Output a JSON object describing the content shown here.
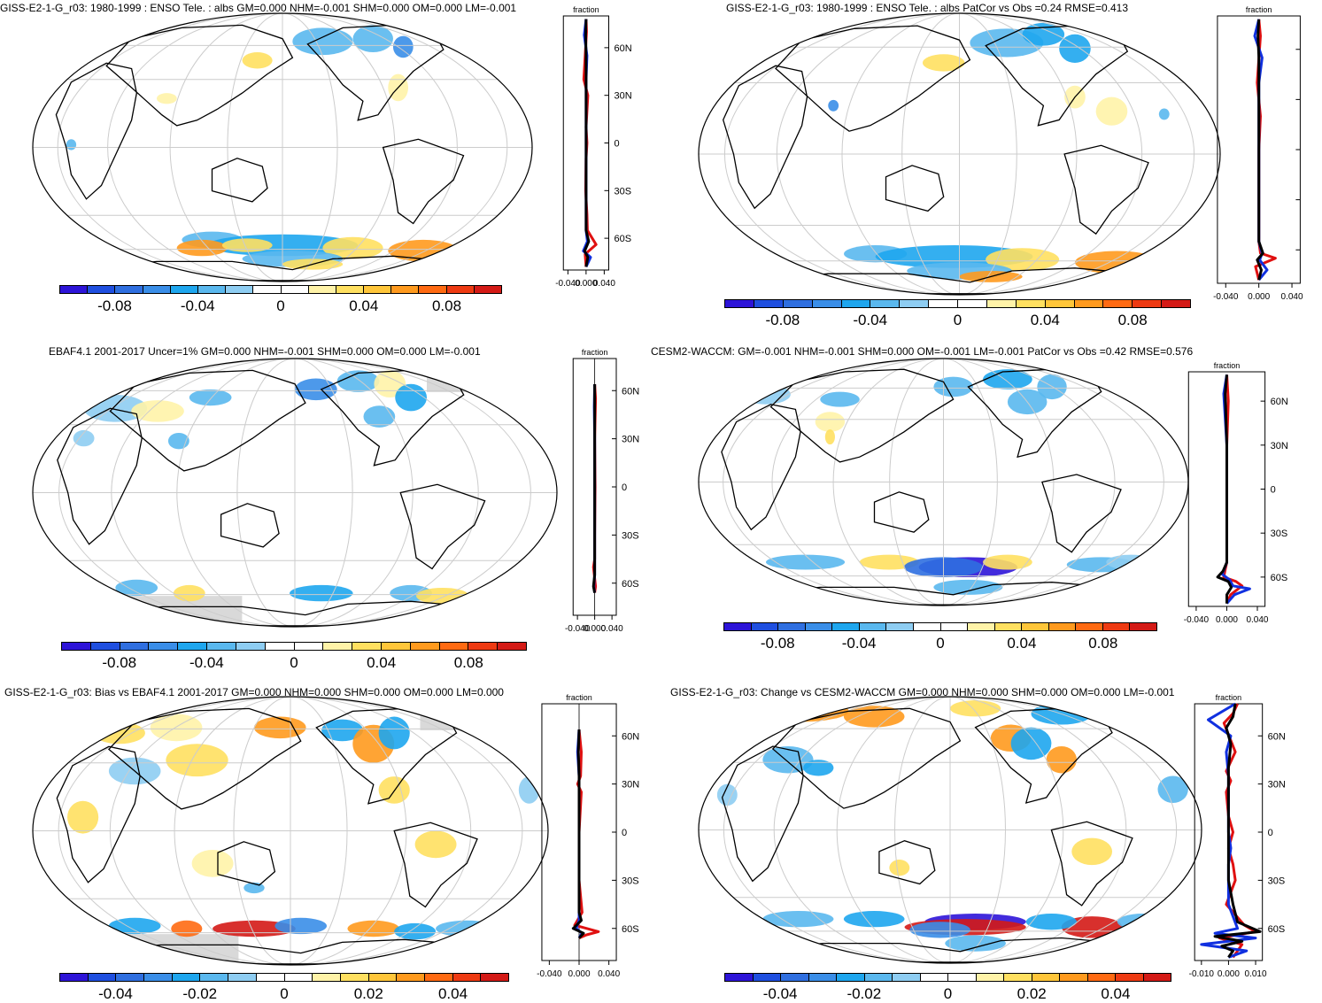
{
  "colorbar_colors": [
    "#2d14d8",
    "#1f4fe0",
    "#2f6fe0",
    "#3a8ee8",
    "#1ea6ee",
    "#5ab8ee",
    "#8ecdf2",
    "#ffffff",
    "#ffffff",
    "#fff3a8",
    "#ffe060",
    "#ffc63a",
    "#ff9a1e",
    "#ff6a12",
    "#ee3a12",
    "#d41a16"
  ],
  "line_colors": {
    "red": "#e01010",
    "blue": "#1030e0",
    "black": "#000000"
  },
  "panels": [
    {
      "title": "GISS-E2-1-G_r03: 1980-1999 : ENSO Tele. : albs GM=0.000 NHM=-0.001 SHM=0.000 OM=0.000 LM=-0.001",
      "colorbar_ticks": [
        "-0.08",
        "-0.04",
        "0",
        "0.04",
        "0.08"
      ],
      "zonal": {
        "label": "fraction",
        "xticks": [
          "-0.040",
          "0.000",
          "0.040"
        ],
        "yticks": [
          "60N",
          "30N",
          "0",
          "30S",
          "60S"
        ]
      }
    },
    {
      "title": "GISS-E2-1-G_r03: 1980-1999 : ENSO Tele. : albs PatCor vs Obs =0.24 RMSE=0.413",
      "colorbar_ticks": [
        "-0.08",
        "-0.04",
        "0",
        "0.04",
        "0.08"
      ],
      "zonal": {
        "label": "fraction",
        "xticks": [
          "-0.040",
          "0.000",
          "0.040"
        ],
        "yticks": []
      }
    },
    {
      "title": "EBAF4.1 2001-2017 Uncer=1% GM=0.000 NHM=-0.001 SHM=0.000 OM=0.000 LM=-0.001",
      "colorbar_ticks": [
        "-0.08",
        "-0.04",
        "0",
        "0.04",
        "0.08"
      ],
      "zonal": {
        "label": "fraction",
        "xticks": [
          "-0.040",
          "0.000",
          "0.040"
        ],
        "yticks": [
          "60N",
          "30N",
          "0",
          "30S",
          "60S"
        ]
      }
    },
    {
      "title": "CESM2-WACCM: GM=-0.001 NHM=-0.001 SHM=0.000 OM=-0.001 LM=-0.001 PatCor vs Obs =0.42 RMSE=0.576",
      "colorbar_ticks": [
        "-0.08",
        "-0.04",
        "0",
        "0.04",
        "0.08"
      ],
      "zonal": {
        "label": "fraction",
        "xticks": [
          "-0.040",
          "0.000",
          "0.040"
        ],
        "yticks": [
          "60N",
          "30N",
          "0",
          "30S",
          "60S"
        ]
      }
    },
    {
      "title": "GISS-E2-1-G_r03: Bias vs EBAF4.1 2001-2017 GM=0.000 NHM=0.000 SHM=0.000 OM=0.000 LM=0.000",
      "colorbar_ticks": [
        "-0.04",
        "-0.02",
        "0",
        "0.02",
        "0.04"
      ],
      "zonal": {
        "label": "fraction",
        "xticks": [
          "-0.040",
          "0.000",
          "0.040"
        ],
        "yticks": [
          "60N",
          "30N",
          "0",
          "30S",
          "60S"
        ]
      }
    },
    {
      "title": "GISS-E2-1-G_r03: Change vs CESM2-WACCM GM=0.000 NHM=0.000 SHM=0.000 OM=0.000 LM=-0.001",
      "colorbar_ticks": [
        "-0.04",
        "-0.02",
        "0",
        "0.02",
        "0.04"
      ],
      "zonal": {
        "label": "fraction",
        "xticks": [
          "-0.010",
          "0.000",
          "0.010"
        ],
        "yticks": [
          "60N",
          "30N",
          "0",
          "30S",
          "60S"
        ]
      }
    }
  ],
  "chart_data": [
    {
      "type": "heatmap",
      "title": "GISS-E2-1-G_r03: 1980-1999 : ENSO Tele. : albs GM=0.000 NHM=-0.001 SHM=0.000 OM=0.000 LM=-0.001",
      "colorbar": {
        "min": -0.1,
        "max": 0.1,
        "ticks": [
          -0.08,
          -0.04,
          0,
          0.04,
          0.08
        ]
      },
      "zonal_mean": {
        "xlabel": "fraction",
        "xlim": [
          -0.05,
          0.05
        ],
        "ylim": [
          -80,
          80
        ],
        "series": [
          {
            "name": "red",
            "x": [
              0,
              0.001,
              -0.005,
              0.004,
              0,
              0.002,
              0,
              -0.001,
              0.002,
              0.003,
              0.022,
              -0.002,
              0
            ],
            "y": [
              78,
              70,
              40,
              30,
              10,
              0,
              -10,
              -30,
              -45,
              -55,
              -64,
              -70,
              -78
            ]
          },
          {
            "name": "blue",
            "x": [
              0,
              -0.004,
              0.002,
              0,
              0,
              0,
              0,
              0,
              0,
              0.003,
              -0.006,
              0.01,
              0
            ],
            "y": [
              78,
              68,
              55,
              40,
              20,
              0,
              -20,
              -40,
              -55,
              -62,
              -68,
              -72,
              -78
            ]
          },
          {
            "name": "black",
            "x": [
              0,
              -0.001,
              0,
              0,
              0,
              0,
              0,
              0,
              0,
              0.006,
              -0.003,
              0.004,
              0
            ],
            "y": [
              78,
              68,
              55,
              40,
              20,
              0,
              -20,
              -40,
              -55,
              -62,
              -68,
              -72,
              -78
            ]
          }
        ]
      }
    },
    {
      "type": "heatmap",
      "title": "GISS-E2-1-G_r03: 1980-1999 : ENSO Tele. : albs PatCor vs Obs =0.24 RMSE=0.413",
      "colorbar": {
        "min": -0.1,
        "max": 0.1,
        "ticks": [
          -0.08,
          -0.04,
          0,
          0.04,
          0.08
        ]
      },
      "zonal_mean": {
        "xlabel": "fraction",
        "xlim": [
          -0.05,
          0.05
        ],
        "ylim": [
          -80,
          80
        ],
        "series": [
          {
            "name": "red",
            "x": [
              0,
              0.002,
              -0.002,
              0.002,
              0,
              0,
              0,
              0,
              0.002,
              0.02,
              -0.004,
              0
            ],
            "y": [
              78,
              68,
              40,
              20,
              0,
              -20,
              -40,
              -55,
              -62,
              -65,
              -70,
              -78
            ]
          },
          {
            "name": "blue",
            "x": [
              0,
              -0.005,
              0.004,
              0,
              0,
              0,
              0,
              0,
              0.004,
              0.001,
              0.01,
              0
            ],
            "y": [
              78,
              68,
              55,
              40,
              0,
              -20,
              -40,
              -55,
              -62,
              -66,
              -72,
              -78
            ]
          },
          {
            "name": "black",
            "x": [
              0,
              -0.001,
              0,
              0,
              0,
              0,
              0,
              0,
              0.005,
              -0.002,
              0.003,
              0
            ],
            "y": [
              78,
              68,
              55,
              40,
              0,
              -20,
              -40,
              -55,
              -62,
              -66,
              -72,
              -78
            ]
          }
        ]
      }
    },
    {
      "type": "heatmap",
      "title": "EBAF4.1 2001-2017 Uncer=1% GM=0.000 NHM=-0.001 SHM=0.000 OM=0.000 LM=-0.001",
      "colorbar": {
        "min": -0.1,
        "max": 0.1,
        "ticks": [
          -0.08,
          -0.04,
          0,
          0.04,
          0.08
        ]
      },
      "zonal_mean": {
        "xlabel": "fraction",
        "xlim": [
          -0.05,
          0.05
        ],
        "ylim": [
          -80,
          80
        ],
        "series": [
          {
            "name": "red",
            "x": [
              0,
              0.002,
              0,
              0.001,
              0,
              0,
              -0.003,
              0.002,
              0
            ],
            "y": [
              64,
              55,
              30,
              0,
              -30,
              -45,
              -50,
              -62,
              -66
            ]
          },
          {
            "name": "blue",
            "x": [
              0,
              -0.001,
              0,
              0,
              0,
              0,
              0,
              -0.002,
              0
            ],
            "y": [
              64,
              50,
              30,
              0,
              -30,
              -45,
              -55,
              -62,
              -66
            ]
          },
          {
            "name": "black",
            "x": [
              0,
              0,
              0,
              0,
              0,
              0,
              0,
              -0.003,
              0
            ],
            "y": [
              64,
              50,
              30,
              0,
              -30,
              -45,
              -55,
              -62,
              -66
            ]
          }
        ]
      }
    },
    {
      "type": "heatmap",
      "title": "CESM2-WACCM: GM=-0.001 NHM=-0.001 SHM=0.000 OM=-0.001 LM=-0.001 PatCor vs Obs =0.42 RMSE=0.576",
      "colorbar": {
        "min": -0.1,
        "max": 0.1,
        "ticks": [
          -0.08,
          -0.04,
          0,
          0.04,
          0.08
        ]
      },
      "zonal_mean": {
        "xlabel": "fraction",
        "xlim": [
          -0.05,
          0.05
        ],
        "ylim": [
          -80,
          80
        ],
        "series": [
          {
            "name": "red",
            "x": [
              0,
              0.002,
              0,
              0,
              0,
              0,
              -0.002,
              -0.004,
              0.012,
              0.02,
              0.005,
              0
            ],
            "y": [
              78,
              60,
              30,
              0,
              -30,
              -50,
              -55,
              -60,
              -63,
              -66,
              -72,
              -78
            ]
          },
          {
            "name": "blue",
            "x": [
              0,
              -0.004,
              0,
              0,
              0,
              0,
              -0.006,
              0.004,
              0.008,
              0.03,
              0.01,
              0
            ],
            "y": [
              78,
              65,
              30,
              0,
              -30,
              -50,
              -58,
              -62,
              -66,
              -68,
              -72,
              -78
            ]
          },
          {
            "name": "black",
            "x": [
              0,
              -0.002,
              0,
              0,
              0,
              0,
              -0.005,
              -0.012,
              0.002,
              0.006,
              0,
              0
            ],
            "y": [
              78,
              65,
              30,
              0,
              -30,
              -50,
              -56,
              -60,
              -63,
              -67,
              -72,
              -78
            ]
          }
        ]
      }
    },
    {
      "type": "heatmap",
      "title": "GISS-E2-1-G_r03: Bias vs EBAF4.1 2001-2017 GM=0.000 NHM=0.000 SHM=0.000 OM=0.000 LM=0.000",
      "colorbar": {
        "min": -0.05,
        "max": 0.05,
        "ticks": [
          -0.04,
          -0.02,
          0,
          0.02,
          0.04
        ]
      },
      "zonal_mean": {
        "xlabel": "fraction",
        "xlim": [
          -0.05,
          0.05
        ],
        "ylim": [
          -80,
          80
        ],
        "series": [
          {
            "name": "red",
            "x": [
              0,
              0.003,
              0.002,
              -0.002,
              0.003,
              0,
              0,
              0.004,
              -0.006,
              0.026,
              0.01,
              0
            ],
            "y": [
              64,
              50,
              35,
              30,
              25,
              0,
              -30,
              -50,
              -58,
              -62,
              -64,
              -66
            ]
          },
          {
            "name": "blue",
            "x": [
              0,
              -0.002,
              0,
              0,
              0,
              0,
              0,
              0,
              -0.004,
              0.004,
              0
            ],
            "y": [
              64,
              50,
              35,
              20,
              0,
              -30,
              -50,
              -55,
              -60,
              -63,
              -66
            ]
          },
          {
            "name": "black",
            "x": [
              0,
              -0.001,
              0,
              0,
              0,
              0,
              0,
              0.003,
              -0.008,
              0.006,
              0
            ],
            "y": [
              64,
              50,
              35,
              20,
              0,
              -30,
              -50,
              -55,
              -60,
              -63,
              -66
            ]
          }
        ]
      }
    },
    {
      "type": "heatmap",
      "title": "GISS-E2-1-G_r03: Change vs CESM2-WACCM GM=0.000 NHM=0.000 SHM=0.000 OM=0.000 LM=-0.001",
      "colorbar": {
        "min": -0.05,
        "max": 0.05,
        "ticks": [
          -0.04,
          -0.02,
          0,
          0.02,
          0.04
        ]
      },
      "zonal_mean": {
        "xlabel": "fraction",
        "xlim": [
          -0.015,
          0.015
        ],
        "ylim": [
          -80,
          80
        ],
        "series": [
          {
            "name": "red",
            "x": [
              0.004,
              0.002,
              -0.002,
              0.003,
              -0.001,
              0.001,
              -0.001,
              0,
              0.002,
              0,
              0.002,
              0.003,
              -0.001,
              0.007,
              0.012,
              -0.004,
              0.006,
              0.002
            ],
            "y": [
              80,
              74,
              68,
              50,
              38,
              32,
              25,
              10,
              0,
              -10,
              -20,
              -30,
              -45,
              -58,
              -62,
              -66,
              -70,
              -78
            ]
          },
          {
            "name": "blue",
            "x": [
              0.003,
              -0.009,
              0.001,
              -0.001,
              0,
              0,
              0,
              0.001,
              0,
              0,
              0,
              0.004,
              -0.006,
              0.012,
              -0.012,
              0.008,
              0
            ],
            "y": [
              80,
              70,
              60,
              50,
              35,
              20,
              0,
              -10,
              -20,
              -30,
              -45,
              -60,
              -63,
              -66,
              -70,
              -74,
              -78
            ]
          },
          {
            "name": "black",
            "x": [
              0.003,
              0.002,
              -0.001,
              0.001,
              0,
              0,
              0,
              0,
              0,
              0,
              0.002,
              0.004,
              0.014,
              -0.006,
              0.006,
              -0.003,
              0.002,
              0
            ],
            "y": [
              80,
              72,
              65,
              55,
              40,
              20,
              0,
              -10,
              -20,
              -30,
              -45,
              -56,
              -62,
              -65,
              -68,
              -71,
              -74,
              -78
            ]
          }
        ]
      }
    }
  ]
}
